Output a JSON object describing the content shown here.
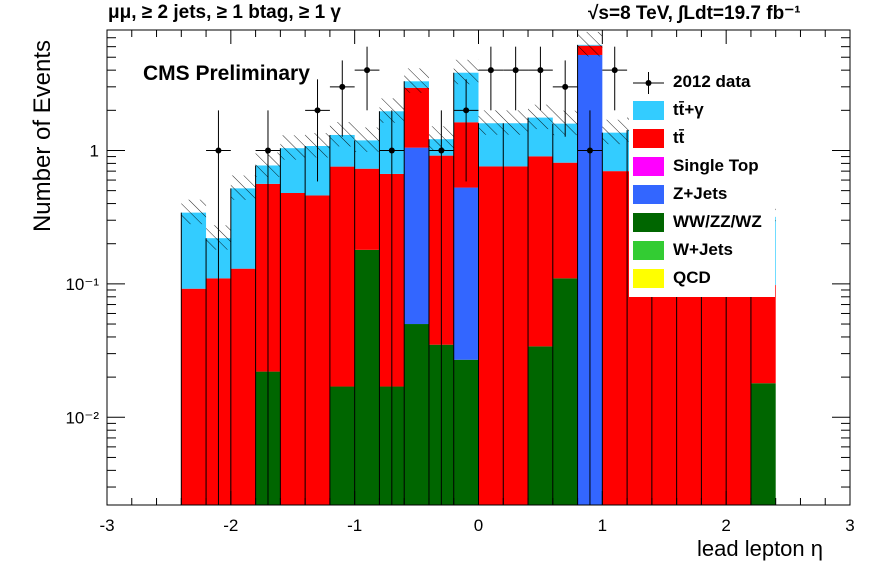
{
  "header": {
    "left": "μμ, ≥ 2 jets, ≥ 1 btag, ≥ 1 γ",
    "right": "√s=8 TeV,  ∫Ldt=19.7 fb⁻¹"
  },
  "label": "CMS Preliminary",
  "colors": {
    "ttgamma": "#33ccff",
    "ttbar": "#ff0000",
    "single_top": "#ff00ff",
    "zjets": "#3366ff",
    "diboson": "#006600",
    "wjets": "#33cc33",
    "qcd": "#ffff00"
  },
  "chart_data": {
    "type": "bar",
    "stacked": true,
    "log_y": true,
    "xlabel": "lead lepton η",
    "ylabel": "Number of Events",
    "xlim": [
      -3,
      3
    ],
    "ylim": [
      0.0022,
      8
    ],
    "x_ticks": [
      "-3",
      "-2",
      "-1",
      "0",
      "1",
      "2",
      "3"
    ],
    "y_ticks": [
      "10⁻²",
      "10⁻¹",
      "1"
    ],
    "bin_edges": [
      -2.4,
      -2.2,
      -2.0,
      -1.8,
      -1.6,
      -1.4,
      -1.2,
      -1.0,
      -0.8,
      -0.6,
      -0.4,
      -0.2,
      0.0,
      0.2,
      0.4,
      0.6,
      0.8,
      1.0,
      1.2,
      1.4,
      1.6,
      1.8,
      2.0,
      2.2,
      2.4
    ],
    "series": [
      {
        "name": "WW/ZZ/WZ",
        "color": "#006600",
        "values": [
          0,
          0,
          0,
          0.022,
          0,
          0,
          0.017,
          0.18,
          0.017,
          0.05,
          0.035,
          0.027,
          0,
          0,
          0.034,
          0.11,
          0,
          0,
          0,
          0,
          0,
          0,
          0,
          0.018
        ]
      },
      {
        "name": "Z+Jets",
        "color": "#3366ff",
        "values": [
          0,
          0,
          0,
          0,
          0,
          0,
          0,
          0,
          0,
          1.0,
          0,
          0.5,
          0,
          0,
          0,
          0,
          5.2,
          0,
          0,
          0,
          0,
          0,
          0,
          0
        ]
      },
      {
        "name": "tt̄",
        "color": "#ff0000",
        "values": [
          0.092,
          0.11,
          0.13,
          0.54,
          0.48,
          0.46,
          0.74,
          0.55,
          0.65,
          1.9,
          0.88,
          1.1,
          0.76,
          0.76,
          0.87,
          0.7,
          0.9,
          0.7,
          0.7,
          0.61,
          0.62,
          0.62,
          0.45,
          0.08
        ]
      },
      {
        "name": "tt̄+γ",
        "color": "#33ccff",
        "values": [
          0.25,
          0.11,
          0.39,
          0.21,
          0.56,
          0.62,
          0.55,
          0.46,
          1.3,
          0.35,
          0.3,
          2.2,
          0.84,
          0.84,
          0.86,
          0.78,
          0.09,
          0.66,
          0.72,
          0.82,
          0.77,
          0.87,
          0.61,
          0.22
        ]
      },
      {
        "name": "Single Top",
        "color": "#ff00ff",
        "values": []
      },
      {
        "name": "W+Jets",
        "color": "#33cc33",
        "values": []
      },
      {
        "name": "QCD",
        "color": "#ffff00",
        "values": []
      }
    ],
    "data": {
      "name": "2012 data",
      "x": [
        -2.1,
        -1.7,
        -1.3,
        -1.1,
        -0.9,
        -0.7,
        -0.3,
        -0.1,
        0.1,
        0.3,
        0.5,
        0.7,
        0.9,
        1.1
      ],
      "y": [
        1,
        1,
        2,
        3,
        4,
        1,
        1,
        2,
        4,
        4,
        4,
        3,
        1,
        4
      ]
    },
    "legend": [
      "2012 data",
      "tt̄+γ",
      "tt̄",
      "Single Top",
      "Z+Jets",
      "WW/ZZ/WZ",
      "W+Jets",
      "QCD"
    ],
    "legend_position": "top-right"
  }
}
